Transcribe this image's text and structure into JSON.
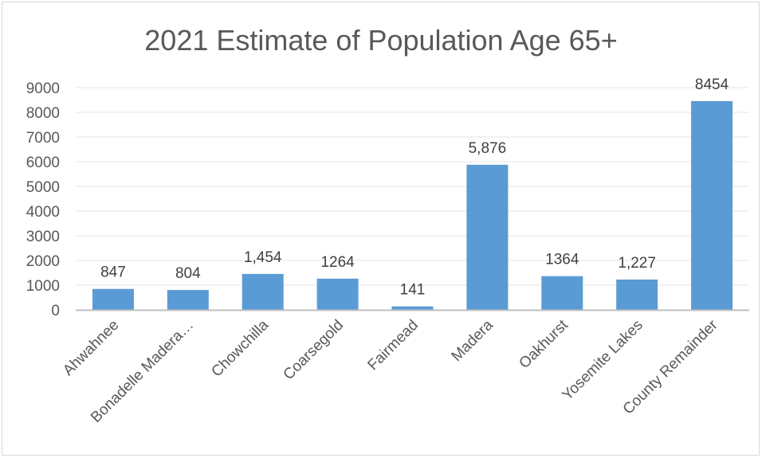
{
  "chart_data": {
    "type": "bar",
    "title": "2021 Estimate of Population Age 65+",
    "xlabel": "",
    "ylabel": "",
    "ylim": [
      0,
      9000
    ],
    "yticks": [
      "0",
      "1000",
      "2000",
      "3000",
      "4000",
      "5000",
      "6000",
      "7000",
      "8000",
      "9000"
    ],
    "categories": [
      "Ahwahnee",
      "Bonadelle Madera…",
      "Chowchilla",
      "Coarsegold",
      "Fairmead",
      "Madera",
      "Oakhurst",
      "Yosemite Lakes",
      "County Remainder"
    ],
    "values": [
      847,
      804,
      1454,
      1264,
      141,
      5876,
      1364,
      1227,
      8454
    ],
    "data_labels": [
      "847",
      "804",
      "1,454",
      "1264",
      "141",
      "5,876",
      "1364",
      "1,227",
      "8454"
    ],
    "bar_color": "#5b9bd5",
    "grid": true,
    "legend": "none"
  }
}
